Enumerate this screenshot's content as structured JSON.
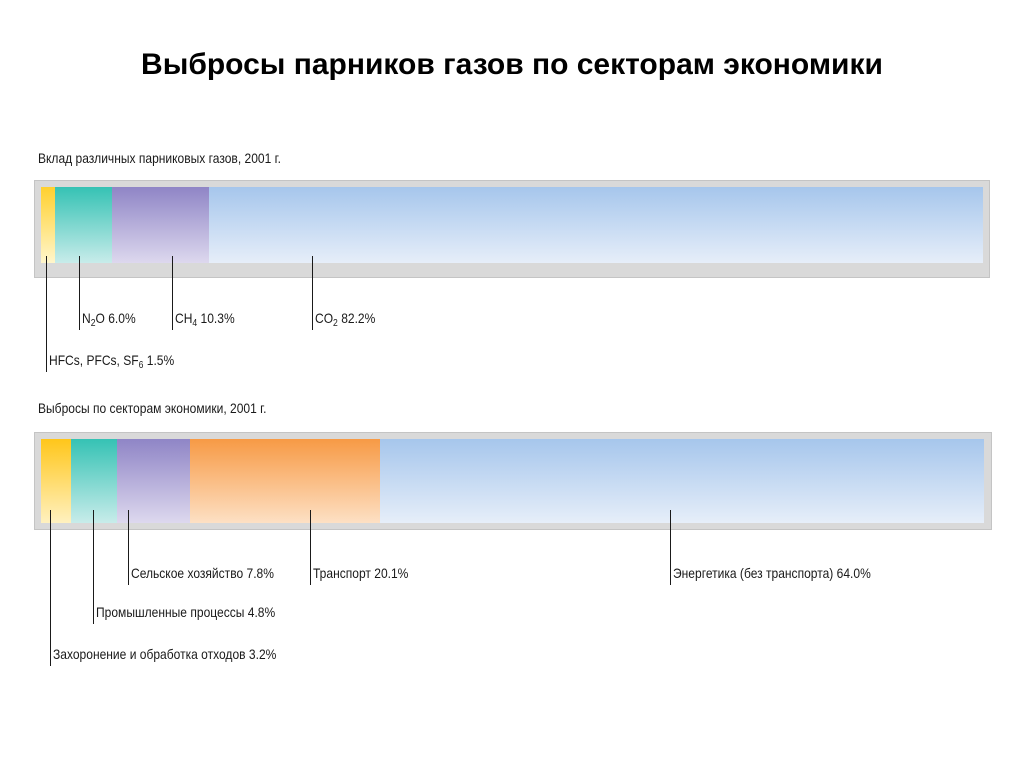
{
  "page_title": "Выбросы парников газов по секторам экономики",
  "chart_data": [
    {
      "type": "bar",
      "orientation": "horizontal-stacked-100",
      "title": "Вклад различных парниковых газов, 2001 г.",
      "xlim": [
        0,
        100
      ],
      "segments": [
        {
          "name": "HFCs, PFCs, SF6",
          "value": 1.5,
          "color_top": "#ffd02e",
          "color_bottom": "#fff6cc",
          "label_parts": [
            {
              "t": "HFCs, PFCs, SF"
            },
            {
              "t": "6",
              "sub": true
            },
            {
              "t": " 1.5%"
            }
          ]
        },
        {
          "name": "N2O",
          "value": 6.0,
          "color_top": "#35c2b4",
          "color_bottom": "#c8ecea",
          "label_parts": [
            {
              "t": "N"
            },
            {
              "t": "2",
              "sub": true
            },
            {
              "t": "O 6.0%"
            }
          ]
        },
        {
          "name": "CH4",
          "value": 10.3,
          "color_top": "#8f85c6",
          "color_bottom": "#ddd8ee",
          "label_parts": [
            {
              "t": "CH"
            },
            {
              "t": "4",
              "sub": true
            },
            {
              "t": " 10.3%"
            }
          ]
        },
        {
          "name": "CO2",
          "value": 82.2,
          "color_top": "#a6c6ec",
          "color_bottom": "#e6eef9",
          "label_parts": [
            {
              "t": "CO"
            },
            {
              "t": "2",
              "sub": true
            },
            {
              "t": " 82.2%"
            }
          ]
        }
      ]
    },
    {
      "type": "bar",
      "orientation": "horizontal-stacked-100",
      "title": "Выбросы по секторам экономики, 2001 г.",
      "xlim": [
        0,
        100
      ],
      "segments": [
        {
          "name": "Захоронение и обработка отходов",
          "value": 3.2,
          "color_top": "#ffc61a",
          "color_bottom": "#fff1c0",
          "label_parts": [
            {
              "t": "Захоронение и обработка отходов 3.2%"
            }
          ]
        },
        {
          "name": "Промышленные процессы",
          "value": 4.8,
          "color_top": "#35c2b4",
          "color_bottom": "#c8ecea",
          "label_parts": [
            {
              "t": "Промышленные процессы 4.8%"
            }
          ]
        },
        {
          "name": "Сельское хозяйство",
          "value": 7.8,
          "color_top": "#8f85c6",
          "color_bottom": "#ddd8ee",
          "label_parts": [
            {
              "t": "Сельское хозяйство 7.8%"
            }
          ]
        },
        {
          "name": "Транспорт",
          "value": 20.1,
          "color_top": "#f79a45",
          "color_bottom": "#fde0c4",
          "label_parts": [
            {
              "t": "Транспорт 20.1%"
            }
          ]
        },
        {
          "name": "Энергетика (без транспорта)",
          "value": 64.0,
          "color_top": "#a6c6ec",
          "color_bottom": "#e6eef9",
          "label_parts": [
            {
              "t": "Энергетика (без транспорта) 64.0%"
            }
          ]
        }
      ]
    }
  ]
}
